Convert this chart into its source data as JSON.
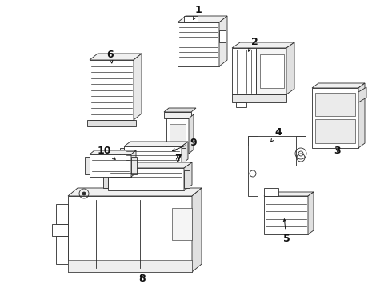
{
  "background_color": "#ffffff",
  "line_color": "#2a2a2a",
  "label_color": "#111111",
  "fig_width": 4.9,
  "fig_height": 3.6,
  "dpi": 100,
  "label_fontsize": 9,
  "arrow_lw": 0.7,
  "draw_lw": 0.6
}
